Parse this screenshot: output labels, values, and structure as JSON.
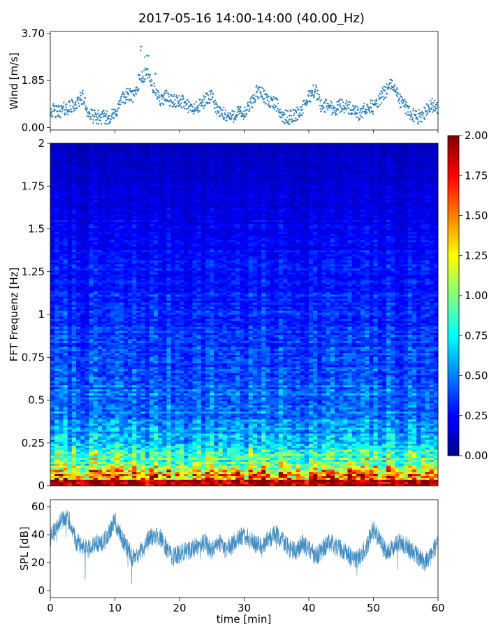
{
  "figure": {
    "title": "2017-05-16 14:00-14:00 (40.00_Hz)"
  },
  "chart_data": [
    {
      "type": "scatter",
      "panel": "wind",
      "ylabel": "Wind [m/s]",
      "xlim": [
        0,
        60
      ],
      "ylim": [
        -0.1,
        3.78
      ],
      "yticks": [
        0.0,
        1.85,
        3.7
      ],
      "ytick_labels": [
        "0.00",
        "1.85",
        "3.70"
      ],
      "x_tick_labels_shown": false,
      "marker": "+",
      "color": "#1f77b4",
      "x": [
        0,
        1,
        2,
        3,
        4,
        5,
        6,
        7,
        8,
        9,
        10,
        11,
        12,
        13,
        14,
        15,
        16,
        17,
        18,
        19,
        20,
        21,
        22,
        23,
        24,
        25,
        26,
        27,
        28,
        29,
        30,
        31,
        32,
        33,
        34,
        35,
        36,
        37,
        38,
        39,
        40,
        41,
        42,
        43,
        44,
        45,
        46,
        47,
        48,
        49,
        50,
        51,
        52,
        53,
        54,
        55,
        56,
        57,
        58,
        59,
        60
      ],
      "y": [
        0.7,
        0.6,
        0.7,
        0.8,
        0.9,
        1.2,
        0.5,
        0.4,
        0.4,
        0.4,
        0.5,
        1.1,
        1.3,
        1.2,
        2.0,
        2.1,
        1.5,
        1.1,
        1.2,
        1.0,
        1.1,
        0.9,
        0.7,
        0.8,
        1.1,
        1.2,
        0.6,
        0.5,
        0.4,
        0.6,
        0.5,
        0.9,
        1.4,
        1.3,
        1.0,
        0.9,
        0.4,
        0.4,
        0.5,
        0.7,
        1.2,
        1.5,
        0.8,
        0.9,
        0.7,
        0.9,
        0.8,
        0.6,
        0.5,
        0.8,
        0.8,
        1.1,
        1.5,
        1.7,
        1.1,
        0.8,
        0.5,
        0.4,
        0.6,
        0.9,
        0.7
      ]
    },
    {
      "type": "heatmap",
      "panel": "spectrogram",
      "ylabel": "FFT Frequenz [Hz]",
      "xlim": [
        0,
        60
      ],
      "ylim": [
        0,
        2
      ],
      "yticks": [
        0,
        0.25,
        0.5,
        0.75,
        1,
        1.25,
        1.5,
        1.75,
        2
      ],
      "ytick_labels": [
        "0",
        "0.25",
        "0.5",
        "0.75",
        "1",
        "1.25",
        "1.5",
        "1.75",
        "2"
      ],
      "colormap": "jet",
      "colorbar": {
        "vmin": 0.0,
        "vmax": 2.0,
        "ticks": [
          0.0,
          0.25,
          0.5,
          0.75,
          1.0,
          1.25,
          1.5,
          1.75,
          2.0
        ],
        "tick_labels": [
          "0.00",
          "0.25",
          "0.50",
          "0.75",
          "1.00",
          "1.25",
          "1.50",
          "1.75",
          "2.00"
        ]
      },
      "frequency_profile": {
        "freq": [
          0,
          0.05,
          0.1,
          0.15,
          0.2,
          0.3,
          0.4,
          0.5,
          0.75,
          1.0,
          1.25,
          1.5,
          1.75,
          2.0
        ],
        "value": [
          1.9,
          1.65,
          1.25,
          0.95,
          0.8,
          0.6,
          0.5,
          0.45,
          0.38,
          0.33,
          0.28,
          0.22,
          0.17,
          0.12
        ]
      }
    },
    {
      "type": "line",
      "panel": "spl",
      "xlabel": "time [min]",
      "ylabel": "SPL [dB]",
      "xlim": [
        0,
        60
      ],
      "ylim": [
        -5,
        65
      ],
      "xticks": [
        0,
        10,
        20,
        30,
        40,
        50,
        60
      ],
      "xtick_labels": [
        "0",
        "10",
        "20",
        "30",
        "40",
        "50",
        "60"
      ],
      "yticks": [
        0,
        20,
        40,
        60
      ],
      "ytick_labels": [
        "0",
        "20",
        "40",
        "60"
      ],
      "color": "#1f77b4",
      "x": [
        0,
        1,
        2,
        3,
        4,
        5,
        6,
        7,
        8,
        9,
        10,
        11,
        12,
        13,
        14,
        15,
        16,
        17,
        18,
        19,
        20,
        21,
        22,
        23,
        24,
        25,
        26,
        27,
        28,
        29,
        30,
        31,
        32,
        33,
        34,
        35,
        36,
        37,
        38,
        39,
        40,
        41,
        42,
        43,
        44,
        45,
        46,
        47,
        48,
        49,
        50,
        51,
        52,
        53,
        54,
        55,
        56,
        57,
        58,
        59,
        60
      ],
      "y": [
        38,
        45,
        52,
        50,
        35,
        32,
        30,
        34,
        33,
        40,
        50,
        38,
        30,
        22,
        28,
        35,
        40,
        38,
        30,
        24,
        26,
        28,
        30,
        32,
        34,
        28,
        35,
        30,
        32,
        38,
        40,
        36,
        33,
        32,
        38,
        40,
        36,
        30,
        28,
        34,
        30,
        25,
        28,
        35,
        32,
        30,
        26,
        22,
        24,
        32,
        45,
        35,
        28,
        30,
        35,
        32,
        28,
        24,
        20,
        26,
        35
      ],
      "spread": 7
    }
  ]
}
